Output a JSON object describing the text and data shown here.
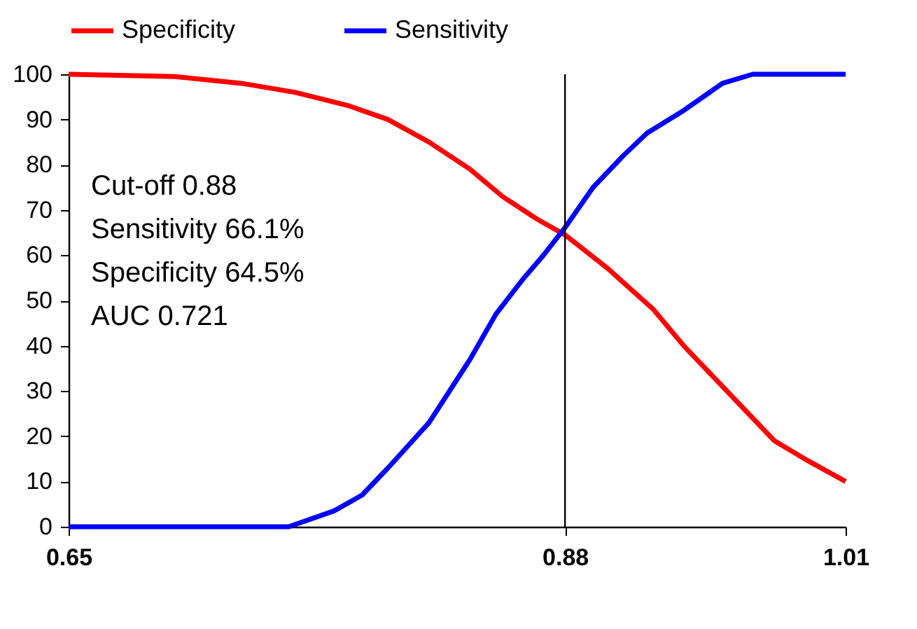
{
  "chart_data": {
    "type": "line",
    "xlim": [
      0.65,
      1.01
    ],
    "xticks": [
      0.65,
      0.88,
      1.01
    ],
    "ylim": [
      0,
      100
    ],
    "yticks": [
      0,
      10,
      20,
      30,
      40,
      50,
      60,
      70,
      80,
      90,
      100
    ],
    "grid": false,
    "legend": "top",
    "line_style": "solid",
    "marker": "none",
    "series": [
      {
        "name": "Specificity",
        "color": "#ff0000",
        "x": [
          0.65,
          0.699,
          0.73,
          0.755,
          0.78,
          0.798,
          0.817,
          0.836,
          0.851,
          0.867,
          0.88,
          0.9,
          0.921,
          0.935,
          0.953,
          0.967,
          0.977,
          0.991,
          1.01
        ],
        "values": [
          100,
          99.5,
          98,
          96,
          93,
          90,
          85,
          79,
          73,
          68,
          64.5,
          57,
          48,
          40,
          31,
          24,
          19,
          15,
          10
        ]
      },
      {
        "name": "Sensitivity",
        "color": "#0000ff",
        "x": [
          0.65,
          0.752,
          0.773,
          0.786,
          0.798,
          0.817,
          0.836,
          0.848,
          0.861,
          0.87,
          0.88,
          0.893,
          0.907,
          0.918,
          0.935,
          0.953,
          0.967,
          1.01
        ],
        "values": [
          0,
          0,
          3.5,
          7,
          13,
          23,
          37,
          47,
          55,
          60,
          66.1,
          75,
          82,
          87,
          92,
          98,
          100,
          100
        ]
      }
    ],
    "ref_lines": [
      {
        "axis": "x",
        "value": 0.88,
        "color": "#000000"
      }
    ],
    "annotations": [
      "Cut-off        0.88",
      "Sensitivity     66.1%",
      "Specificity     64.5%",
      "AUC              0.721"
    ]
  }
}
